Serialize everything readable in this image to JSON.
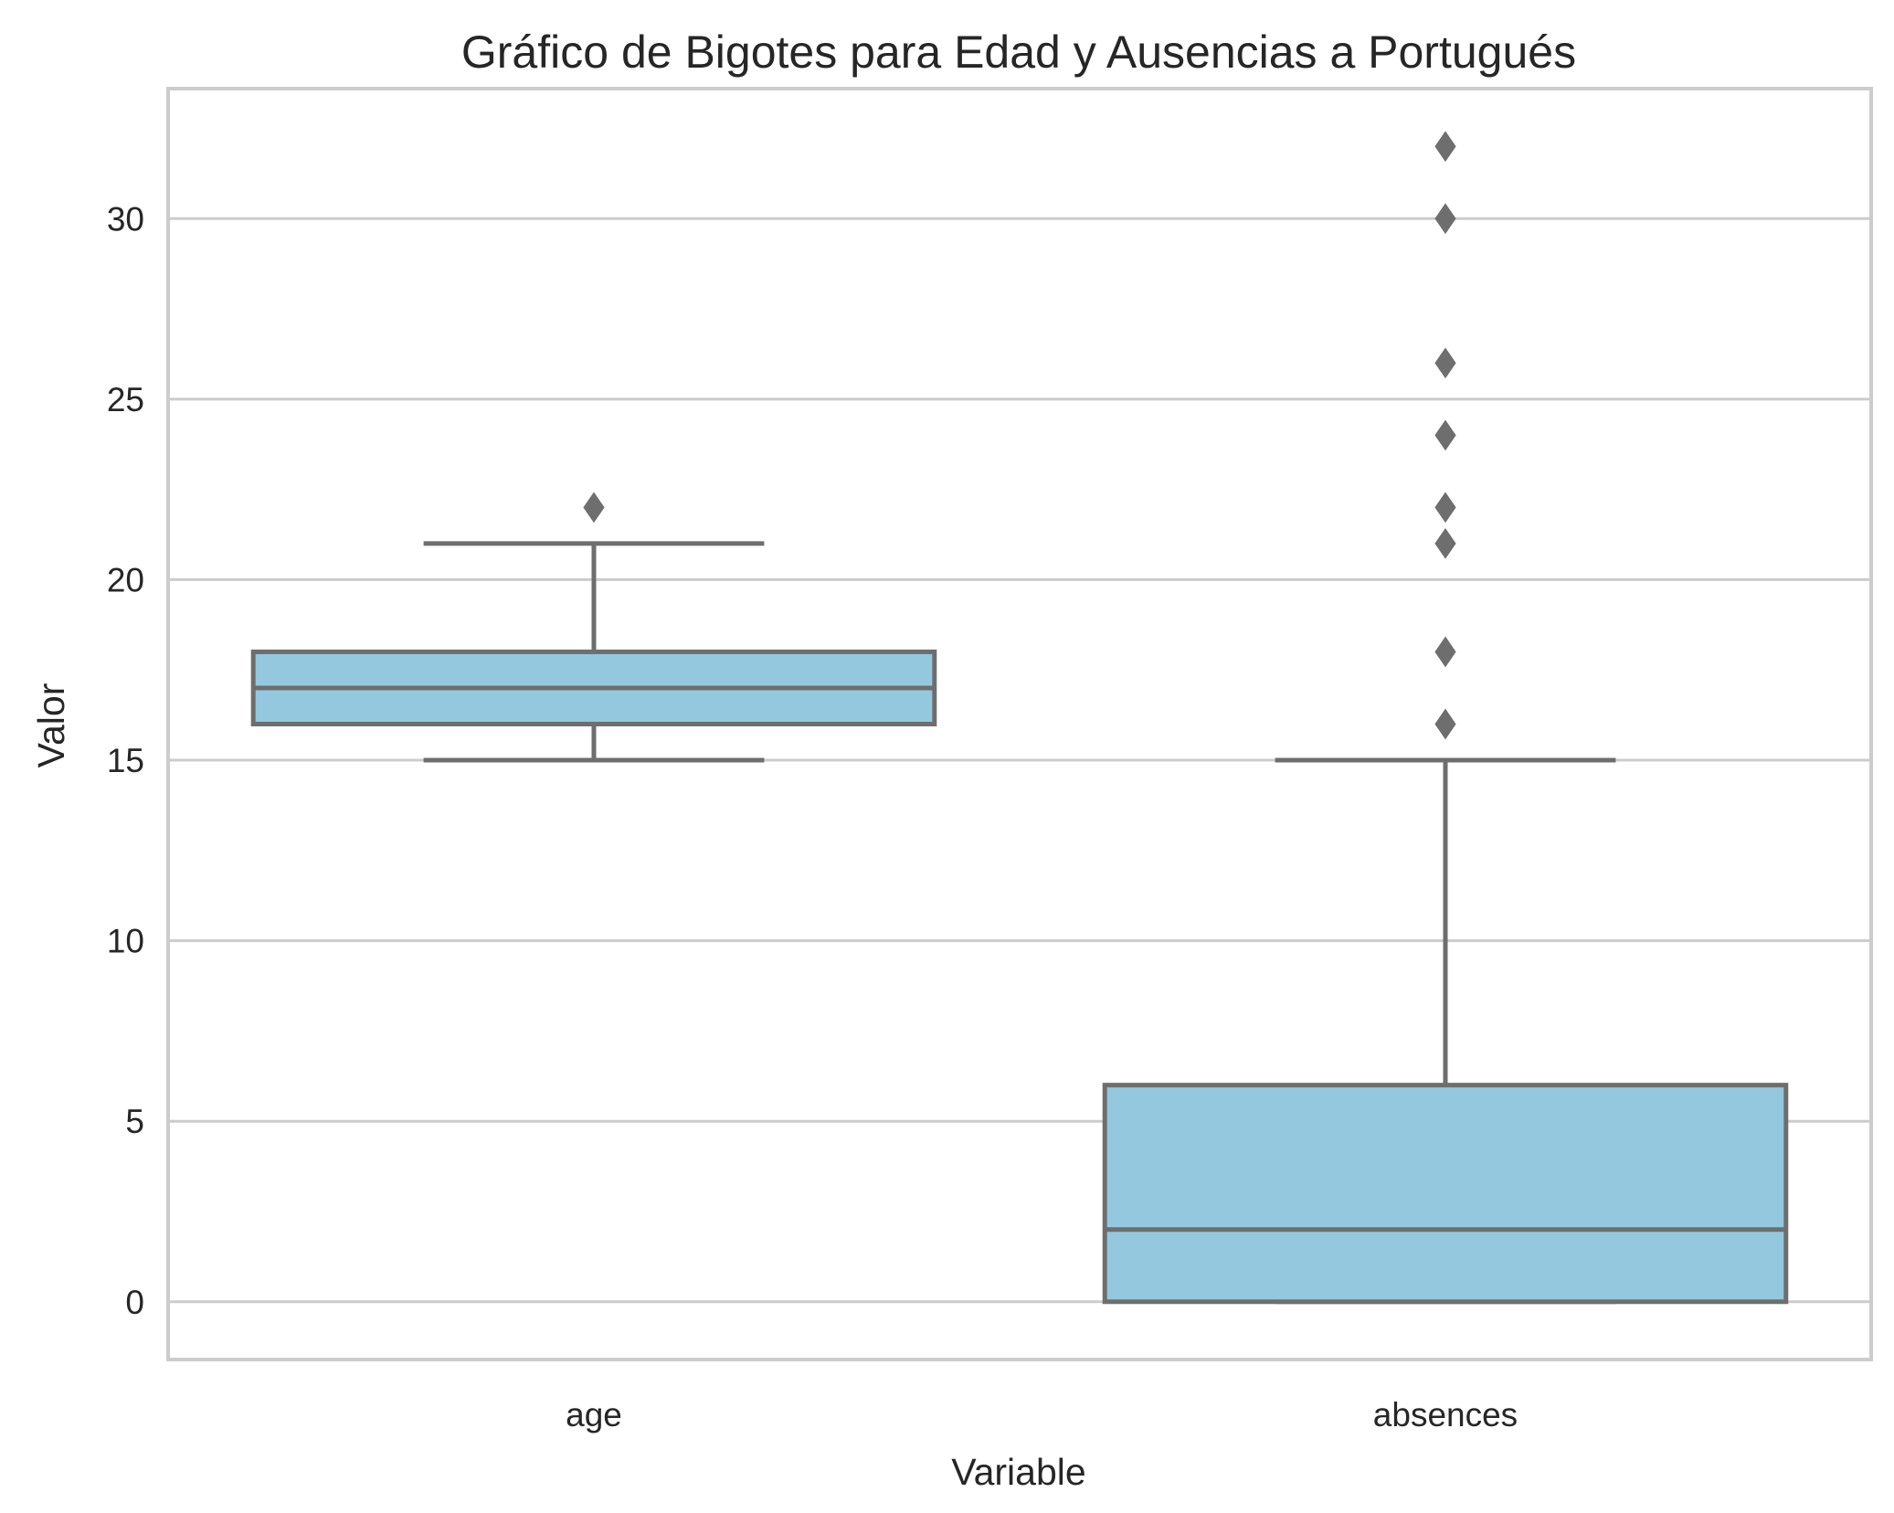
{
  "chart_data": {
    "type": "boxplot",
    "title": "Gráfico de Bigotes para Edad y Ausencias a Portugués",
    "xlabel": "Variable",
    "ylabel": "Valor",
    "ylim": [
      -1.6,
      33.6
    ],
    "yticks": [
      0,
      5,
      10,
      15,
      20,
      25,
      30
    ],
    "grid": "horizontal",
    "box_color": "#93c8de",
    "line_color": "#6e6e6e",
    "grid_color": "#cccccc",
    "series": [
      {
        "name": "age",
        "min": 15,
        "q1": 16,
        "median": 17,
        "q3": 18,
        "max": 21,
        "outliers": [
          22
        ]
      },
      {
        "name": "absences",
        "min": 0,
        "q1": 0,
        "median": 2,
        "q3": 6,
        "max": 15,
        "outliers": [
          16,
          18,
          21,
          22,
          24,
          26,
          30,
          32
        ]
      }
    ]
  }
}
